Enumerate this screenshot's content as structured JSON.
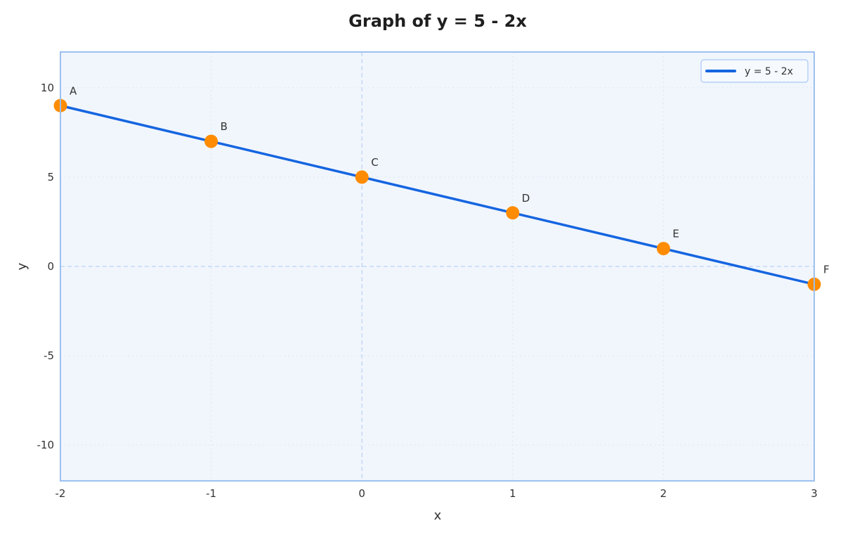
{
  "chart_data": {
    "type": "line",
    "title": "Graph of y = 5 - 2x",
    "xlabel": "x",
    "ylabel": "y",
    "xlim": [
      -2,
      3
    ],
    "ylim": [
      -12,
      12
    ],
    "xticks": [
      -2,
      -1,
      0,
      1,
      2,
      3
    ],
    "yticks": [
      -10,
      -5,
      0,
      5,
      10
    ],
    "grid": true,
    "legend_position": "upper right",
    "series": [
      {
        "name": "y = 5 - 2x",
        "x": [
          -2,
          3
        ],
        "y": [
          9,
          -1
        ],
        "color": "#1565e0"
      }
    ],
    "points": [
      {
        "label": "A",
        "x": -2,
        "y": 9
      },
      {
        "label": "B",
        "x": -1,
        "y": 7
      },
      {
        "label": "C",
        "x": 0,
        "y": 5
      },
      {
        "label": "D",
        "x": 1,
        "y": 3
      },
      {
        "label": "E",
        "x": 2,
        "y": 1
      },
      {
        "label": "F",
        "x": 3,
        "y": -1
      }
    ],
    "point_color": "#ff8c00",
    "axis_lines": {
      "x0": true,
      "y0": true
    }
  },
  "colors": {
    "plot_bg": "#f1f6fd",
    "frame": "#9cc0f0",
    "grid": "#dde6f2",
    "zero_line": "#c3d8f5",
    "line": "#1565e0",
    "point": "#ff8c00"
  }
}
